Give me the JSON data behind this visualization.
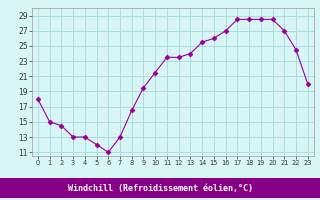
{
  "x": [
    0,
    1,
    2,
    3,
    4,
    5,
    6,
    7,
    8,
    9,
    10,
    11,
    12,
    13,
    14,
    15,
    16,
    17,
    18,
    19,
    20,
    21,
    22,
    23
  ],
  "y": [
    18.0,
    15.0,
    14.5,
    13.0,
    13.0,
    12.0,
    11.0,
    13.0,
    16.5,
    19.5,
    21.5,
    23.5,
    23.5,
    24.0,
    25.5,
    26.0,
    27.0,
    28.5,
    28.5,
    28.5,
    28.5,
    27.0,
    24.5,
    20.0
  ],
  "line_color": "#990099",
  "marker": "D",
  "marker_size": 2.5,
  "bg_color": "#d8f5f5",
  "grid_color": "#aadddd",
  "xlabel": "Windchill (Refroidissement éolien,°C)",
  "xlabel_color": "#ffffff",
  "xlabel_bg": "#880088",
  "ylabel_ticks": [
    11,
    13,
    15,
    17,
    19,
    21,
    23,
    25,
    27,
    29
  ],
  "xtick_labels": [
    "0",
    "1",
    "2",
    "3",
    "4",
    "5",
    "6",
    "7",
    "8",
    "9",
    "10",
    "11",
    "12",
    "13",
    "14",
    "15",
    "16",
    "17",
    "18",
    "19",
    "20",
    "21",
    "22",
    "23"
  ],
  "ylim": [
    10.5,
    30.0
  ],
  "xlim": [
    -0.5,
    23.5
  ]
}
